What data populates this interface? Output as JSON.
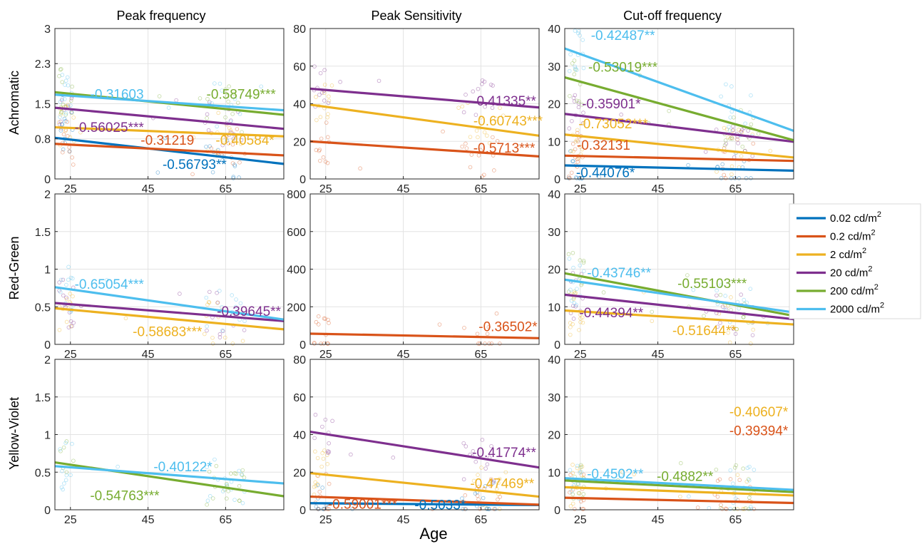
{
  "figure": {
    "xlabel": "Age",
    "column_titles": [
      "Peak frequency",
      "Peak Sensitivity",
      "Cut-off frequency"
    ],
    "row_labels": [
      "Achromatic",
      "Red-Green",
      "Yellow-Violet"
    ]
  },
  "colors": {
    "0.02": "#0072BD",
    "0.2": "#D95319",
    "2": "#EDB120",
    "20": "#7E2F8E",
    "200": "#77AC30",
    "2000": "#4DBEEE"
  },
  "legend": {
    "placement": "right",
    "entries": [
      {
        "key": "0.02",
        "label": "0.02 cd/m",
        "sup": "2"
      },
      {
        "key": "0.2",
        "label": "0.2 cd/m",
        "sup": "2"
      },
      {
        "key": "2",
        "label": "2 cd/m",
        "sup": "2"
      },
      {
        "key": "20",
        "label": "20 cd/m",
        "sup": "2"
      },
      {
        "key": "200",
        "label": "200 cd/m",
        "sup": "2"
      },
      {
        "key": "2000",
        "label": "2000 cd/m",
        "sup": "2"
      }
    ]
  },
  "chart_data": [
    {
      "type": "scatter",
      "row": 0,
      "col": 0,
      "title": "Peak frequency",
      "ylabel": "Achromatic",
      "xlim": [
        21,
        80
      ],
      "ylim": [
        0,
        3
      ],
      "x_ticks": [
        25,
        45,
        65
      ],
      "y_ticks": [
        0,
        0.8,
        1.5,
        2.3,
        3
      ],
      "y_tick_labels": [
        "0",
        "0.8",
        "1.5",
        "2.3",
        "3"
      ],
      "grid": true,
      "series": [
        {
          "key": "0.02",
          "line": [
            [
              21,
              0.82
            ],
            [
              80,
              0.3
            ]
          ]
        },
        {
          "key": "0.2",
          "line": [
            [
              21,
              0.7
            ],
            [
              80,
              0.47
            ]
          ]
        },
        {
          "key": "2",
          "line": [
            [
              21,
              1.03
            ],
            [
              80,
              0.85
            ]
          ]
        },
        {
          "key": "20",
          "line": [
            [
              21,
              1.42
            ],
            [
              80,
              1.0
            ]
          ]
        },
        {
          "key": "200",
          "line": [
            [
              21,
              1.73
            ],
            [
              80,
              1.28
            ]
          ]
        },
        {
          "key": "2000",
          "line": [
            [
              21,
              1.68
            ],
            [
              80,
              1.37
            ]
          ]
        }
      ],
      "annotations": [
        {
          "text": "-0.31603",
          "key": "2000",
          "x": 37,
          "y": 1.6
        },
        {
          "text": "-0.58749***",
          "key": "200",
          "x": 69,
          "y": 1.6
        },
        {
          "text": "-0.56025***",
          "key": "20",
          "x": 35,
          "y": 0.94
        },
        {
          "text": "-0.31219",
          "key": "0.2",
          "x": 50,
          "y": 0.68
        },
        {
          "text": "-0.40584*",
          "key": "2",
          "x": 70,
          "y": 0.68
        },
        {
          "text": "-0.56793**",
          "key": "0.02",
          "x": 57,
          "y": 0.2
        }
      ]
    },
    {
      "type": "scatter",
      "row": 0,
      "col": 1,
      "title": "Peak Sensitivity",
      "ylabel": "",
      "xlim": [
        21,
        80
      ],
      "ylim": [
        0,
        80
      ],
      "x_ticks": [
        25,
        45,
        65
      ],
      "y_ticks": [
        0,
        20,
        40,
        60,
        80
      ],
      "grid": true,
      "series": [
        {
          "key": "0.2",
          "line": [
            [
              21,
              20
            ],
            [
              80,
              12
            ]
          ]
        },
        {
          "key": "2",
          "line": [
            [
              21,
              39.5
            ],
            [
              80,
              23
            ]
          ]
        },
        {
          "key": "20",
          "line": [
            [
              21,
              48
            ],
            [
              80,
              38
            ]
          ]
        }
      ],
      "annotations": [
        {
          "text": "-0.41335**",
          "key": "20",
          "x": 71,
          "y": 39
        },
        {
          "text": "-0.60743***",
          "key": "2",
          "x": 72,
          "y": 28.5
        },
        {
          "text": "-0.5713***",
          "key": "0.2",
          "x": 71,
          "y": 14
        }
      ]
    },
    {
      "type": "scatter",
      "row": 0,
      "col": 2,
      "title": "Cut-off frequency",
      "ylabel": "",
      "xlim": [
        21,
        80
      ],
      "ylim": [
        0,
        40
      ],
      "x_ticks": [
        25,
        45,
        65
      ],
      "y_ticks": [
        0,
        10,
        20,
        30,
        40
      ],
      "grid": true,
      "series": [
        {
          "key": "0.02",
          "line": [
            [
              21,
              3.6
            ],
            [
              80,
              2.2
            ]
          ]
        },
        {
          "key": "0.2",
          "line": [
            [
              21,
              6.2
            ],
            [
              80,
              4.8
            ]
          ]
        },
        {
          "key": "2",
          "line": [
            [
              21,
              11.8
            ],
            [
              80,
              5.7
            ]
          ]
        },
        {
          "key": "20",
          "line": [
            [
              21,
              17.3
            ],
            [
              80,
              9.9
            ]
          ]
        },
        {
          "key": "200",
          "line": [
            [
              21,
              27
            ],
            [
              80,
              10.3
            ]
          ]
        },
        {
          "key": "2000",
          "line": [
            [
              21,
              34.7
            ],
            [
              80,
              12.8
            ]
          ]
        }
      ],
      "annotations": [
        {
          "text": "-0.42487**",
          "key": "2000",
          "x": 36,
          "y": 37
        },
        {
          "text": "-0.53019***",
          "key": "200",
          "x": 36,
          "y": 28.5
        },
        {
          "text": "-0.35901*",
          "key": "20",
          "x": 33,
          "y": 18.8
        },
        {
          "text": "-0.73052***",
          "key": "2",
          "x": 33.5,
          "y": 13.5
        },
        {
          "text": "-0.32131",
          "key": "0.2",
          "x": 31,
          "y": 7.8
        },
        {
          "text": "-0.44076*",
          "key": "0.02",
          "x": 31.5,
          "y": 0.5
        }
      ]
    },
    {
      "type": "scatter",
      "row": 1,
      "col": 0,
      "title": "",
      "ylabel": "Red-Green",
      "xlim": [
        21,
        80
      ],
      "ylim": [
        0,
        2
      ],
      "x_ticks": [
        25,
        45,
        65
      ],
      "y_ticks": [
        0,
        0.5,
        1,
        1.5,
        2
      ],
      "grid": true,
      "series": [
        {
          "key": "2",
          "line": [
            [
              21,
              0.48
            ],
            [
              80,
              0.2
            ]
          ]
        },
        {
          "key": "20",
          "line": [
            [
              21,
              0.55
            ],
            [
              80,
              0.31
            ]
          ]
        },
        {
          "key": "2000",
          "line": [
            [
              21,
              0.76
            ],
            [
              80,
              0.33
            ]
          ]
        }
      ],
      "annotations": [
        {
          "text": "-0.65054***",
          "key": "2000",
          "x": 35,
          "y": 0.74
        },
        {
          "text": "-0.39645**",
          "key": "20",
          "x": 71,
          "y": 0.38
        },
        {
          "text": "-0.58683***",
          "key": "2",
          "x": 50,
          "y": 0.11
        }
      ]
    },
    {
      "type": "scatter",
      "row": 1,
      "col": 1,
      "title": "",
      "ylabel": "",
      "xlim": [
        21,
        80
      ],
      "ylim": [
        0,
        800
      ],
      "x_ticks": [
        25,
        45,
        65
      ],
      "y_ticks": [
        0,
        200,
        400,
        600,
        800
      ],
      "grid": true,
      "series": [
        {
          "key": "0.2",
          "line": [
            [
              21,
              57
            ],
            [
              80,
              33
            ]
          ]
        }
      ],
      "annotations": [
        {
          "text": "-0.36502*",
          "key": "0.2",
          "x": 72,
          "y": 70
        }
      ]
    },
    {
      "type": "scatter",
      "row": 1,
      "col": 2,
      "title": "",
      "ylabel": "",
      "xlim": [
        21,
        80
      ],
      "ylim": [
        0,
        40
      ],
      "x_ticks": [
        25,
        45,
        65
      ],
      "y_ticks": [
        0,
        10,
        20,
        30,
        40
      ],
      "grid": true,
      "series": [
        {
          "key": "2",
          "line": [
            [
              21,
              9
            ],
            [
              80,
              5.3
            ]
          ]
        },
        {
          "key": "20",
          "line": [
            [
              21,
              13.2
            ],
            [
              80,
              6.7
            ]
          ]
        },
        {
          "key": "200",
          "line": [
            [
              21,
              18.9
            ],
            [
              80,
              7.6
            ]
          ]
        },
        {
          "key": "2000",
          "line": [
            [
              21,
              17.2
            ],
            [
              80,
              8.5
            ]
          ]
        }
      ],
      "annotations": [
        {
          "text": "-0.43746**",
          "key": "2000",
          "x": 35,
          "y": 17.8
        },
        {
          "text": "-0.55103***",
          "key": "200",
          "x": 59,
          "y": 15
        },
        {
          "text": "-0.44394**",
          "key": "20",
          "x": 33,
          "y": 7.2
        },
        {
          "text": "-0.51644**",
          "key": "2",
          "x": 57,
          "y": 2.5
        }
      ]
    },
    {
      "type": "scatter",
      "row": 2,
      "col": 0,
      "title": "",
      "ylabel": "Yellow-Violet",
      "xlim": [
        21,
        80
      ],
      "ylim": [
        0,
        2
      ],
      "x_ticks": [
        25,
        45,
        65
      ],
      "y_ticks": [
        0,
        0.5,
        1,
        1.5,
        2
      ],
      "grid": true,
      "series": [
        {
          "key": "200",
          "line": [
            [
              21,
              0.63
            ],
            [
              80,
              0.18
            ]
          ]
        },
        {
          "key": "2000",
          "line": [
            [
              21,
              0.58
            ],
            [
              80,
              0.35
            ]
          ]
        }
      ],
      "annotations": [
        {
          "text": "-0.40122*",
          "key": "2000",
          "x": 54,
          "y": 0.51
        },
        {
          "text": "-0.54763***",
          "key": "200",
          "x": 39,
          "y": 0.13
        }
      ]
    },
    {
      "type": "scatter",
      "row": 2,
      "col": 1,
      "title": "",
      "ylabel": "",
      "xlim": [
        21,
        80
      ],
      "ylim": [
        0,
        80
      ],
      "x_ticks": [
        25,
        45,
        65
      ],
      "y_ticks": [
        0,
        20,
        40,
        60,
        80
      ],
      "grid": true,
      "series": [
        {
          "key": "0.02",
          "line": [
            [
              21,
              3.5
            ],
            [
              80,
              2.5
            ]
          ]
        },
        {
          "key": "0.2",
          "line": [
            [
              21,
              7
            ],
            [
              80,
              2.7
            ]
          ]
        },
        {
          "key": "2",
          "line": [
            [
              21,
              19.5
            ],
            [
              80,
              7
            ]
          ]
        },
        {
          "key": "20",
          "line": [
            [
              21,
              41.5
            ],
            [
              80,
              22.5
            ]
          ]
        }
      ],
      "annotations": [
        {
          "text": "-0.41774**",
          "key": "20",
          "x": 71,
          "y": 28
        },
        {
          "text": "-0.47469**",
          "key": "2",
          "x": 70.5,
          "y": 11.5
        },
        {
          "text": "-0.59001***",
          "key": "0.2",
          "x": 34.5,
          "y": 0.5
        },
        {
          "text": "-0.5033*",
          "key": "0.02",
          "x": 54.5,
          "y": 0.1
        }
      ]
    },
    {
      "type": "scatter",
      "row": 2,
      "col": 2,
      "title": "",
      "ylabel": "",
      "xlim": [
        21,
        80
      ],
      "ylim": [
        0,
        40
      ],
      "x_ticks": [
        25,
        45,
        65
      ],
      "y_ticks": [
        0,
        10,
        20,
        30,
        40
      ],
      "grid": true,
      "series": [
        {
          "key": "0.2",
          "line": [
            [
              21,
              3.2
            ],
            [
              80,
              1.8
            ]
          ]
        },
        {
          "key": "2",
          "line": [
            [
              21,
              6
            ],
            [
              80,
              3.8
            ]
          ]
        },
        {
          "key": "200",
          "line": [
            [
              21,
              7.8
            ],
            [
              80,
              4.7
            ]
          ]
        },
        {
          "key": "2000",
          "line": [
            [
              21,
              8.4
            ],
            [
              80,
              5.3
            ]
          ]
        }
      ],
      "annotations": [
        {
          "text": "-0.4502**",
          "key": "2000",
          "x": 34,
          "y": 8.3
        },
        {
          "text": "-0.4882**",
          "key": "200",
          "x": 52,
          "y": 7.7
        },
        {
          "text": "-0.40607*",
          "key": "2",
          "x": 71,
          "y": 24.8
        },
        {
          "text": "-0.39394*",
          "key": "0.2",
          "x": 71,
          "y": 19.8
        }
      ]
    }
  ]
}
